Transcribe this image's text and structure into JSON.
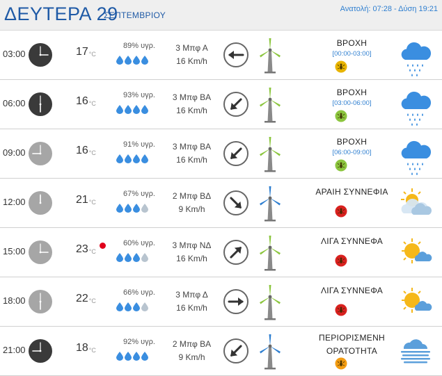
{
  "header": {
    "day_label": "ΔΕΥΤΕΡΑ 29",
    "month_label": "ΣΕΠΤΕΜΒΡΙΟΥ",
    "sun_times": "Ανατολή: 07:28 - Δύση 19:21"
  },
  "colors": {
    "header_text": "#1f5aa6",
    "accent_blue": "#2f7fd0",
    "alert_red": "#e0001b",
    "badge_yellow": "#e8b400",
    "badge_green": "#8cc63f",
    "badge_red": "#d9211f",
    "badge_orange": "#f39c12"
  },
  "rows": [
    {
      "time": "03:00",
      "clock_style": "dark",
      "clock_icon": "clock-icon",
      "temp": "17",
      "temp_unit": "°C",
      "alert": false,
      "humidity": "89% υγρ.",
      "drops_full": 4,
      "wind_bf": "3 Μπφ Α",
      "wind_speed": "16 Km/h",
      "wind_arrow_deg": 180,
      "windmill": "green",
      "condition": "ΒΡΟΧΗ",
      "period": "[00:00-03:00]",
      "badge": "yellow",
      "weather_icon": "rain-cloud-icon"
    },
    {
      "time": "06:00",
      "clock_style": "dark",
      "clock_icon": "clock-icon",
      "temp": "16",
      "temp_unit": "°C",
      "alert": false,
      "humidity": "93% υγρ.",
      "drops_full": 4,
      "wind_bf": "3 Μπφ ΒΑ",
      "wind_speed": "16 Km/h",
      "wind_arrow_deg": 135,
      "windmill": "green",
      "condition": "ΒΡΟΧΗ",
      "period": "[03:00-06:00]",
      "badge": "green",
      "weather_icon": "rain-cloud-icon"
    },
    {
      "time": "09:00",
      "clock_style": "light",
      "clock_icon": "clock-icon",
      "temp": "16",
      "temp_unit": "°C",
      "alert": false,
      "humidity": "91% υγρ.",
      "drops_full": 4,
      "wind_bf": "3 Μπφ ΒΑ",
      "wind_speed": "16 Km/h",
      "wind_arrow_deg": 135,
      "windmill": "green",
      "condition": "ΒΡΟΧΗ",
      "period": "[06:00-09:00]",
      "badge": "green",
      "weather_icon": "rain-cloud-icon"
    },
    {
      "time": "12:00",
      "clock_style": "light",
      "clock_icon": "clock-icon",
      "temp": "21",
      "temp_unit": "°C",
      "alert": false,
      "humidity": "67% υγρ.",
      "drops_full": 3,
      "wind_bf": "2 Μπφ ΒΔ",
      "wind_speed": "9 Km/h",
      "wind_arrow_deg": 45,
      "windmill": "blue",
      "condition": "ΑΡΑΙΗ ΣΥΝΝΕΦΙΑ",
      "period": "",
      "badge": "red",
      "weather_icon": "sun-behind-cloud-icon"
    },
    {
      "time": "15:00",
      "clock_style": "light",
      "clock_icon": "clock-icon",
      "temp": "23",
      "temp_unit": "°C",
      "alert": true,
      "humidity": "60% υγρ.",
      "drops_full": 3,
      "wind_bf": "3 Μπφ ΝΔ",
      "wind_speed": "16 Km/h",
      "wind_arrow_deg": -45,
      "windmill": "green",
      "condition": "ΛΙΓΑ ΣΥΝΝΕΦΑ",
      "period": "",
      "badge": "red",
      "weather_icon": "sun-small-cloud-icon"
    },
    {
      "time": "18:00",
      "clock_style": "light",
      "clock_icon": "clock-icon",
      "temp": "22",
      "temp_unit": "°C",
      "alert": false,
      "humidity": "66% υγρ.",
      "drops_full": 3,
      "wind_bf": "3 Μπφ Δ",
      "wind_speed": "16 Km/h",
      "wind_arrow_deg": 0,
      "windmill": "green",
      "condition": "ΛΙΓΑ ΣΥΝΝΕΦΑ",
      "period": "",
      "badge": "red",
      "weather_icon": "sun-small-cloud-icon"
    },
    {
      "time": "21:00",
      "clock_style": "dark",
      "clock_icon": "clock-icon",
      "temp": "18",
      "temp_unit": "°C",
      "alert": false,
      "humidity": "92% υγρ.",
      "drops_full": 4,
      "wind_bf": "2 Μπφ ΒΑ",
      "wind_speed": "9 Km/h",
      "wind_arrow_deg": 135,
      "windmill": "blue",
      "condition": "ΠΕΡΙΟΡΙΣΜΕΝΗ\nΟΡΑΤΟΤΗΤΑ",
      "period": "",
      "badge": "orange",
      "weather_icon": "fog-icon"
    }
  ]
}
